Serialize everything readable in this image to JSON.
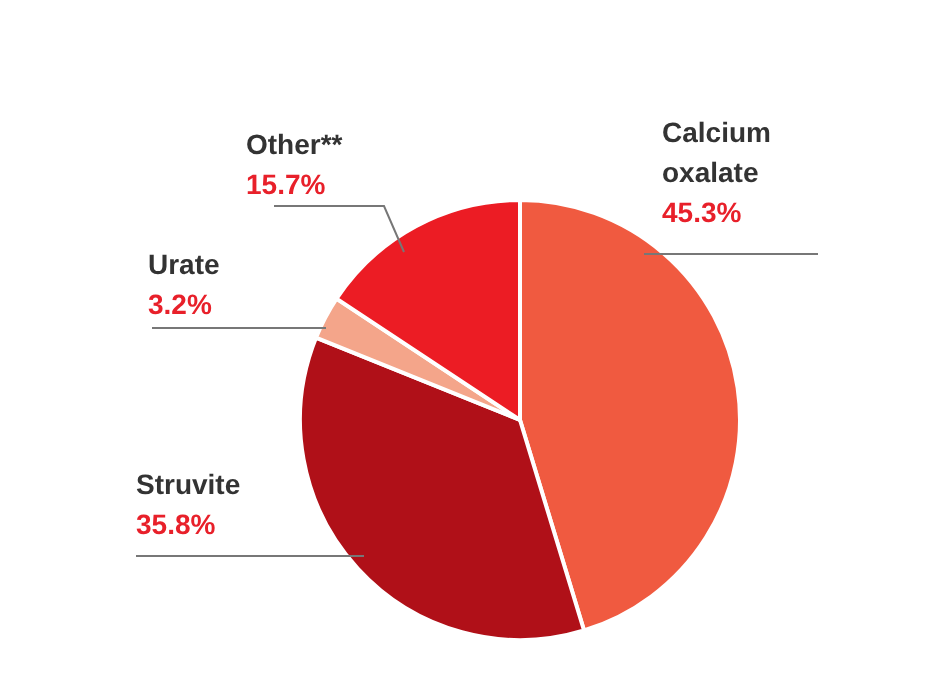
{
  "chart_data": {
    "type": "pie",
    "categories": [
      "Calcium oxalate",
      "Struvite",
      "Urate",
      "Other**"
    ],
    "values": [
      45.3,
      35.8,
      3.2,
      15.7
    ],
    "value_labels": [
      "45.3%",
      "35.8%",
      "3.2%",
      "15.7%"
    ],
    "colors": [
      "#f05a40",
      "#b01018",
      "#f4a58a",
      "#ec1c24"
    ]
  }
}
